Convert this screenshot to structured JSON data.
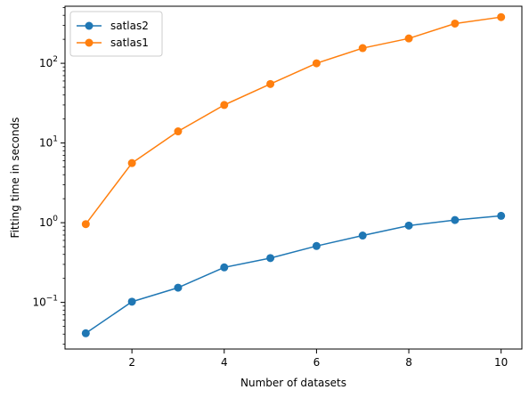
{
  "chart_data": {
    "type": "line",
    "title": "",
    "xlabel": "Number of datasets",
    "ylabel": "Fitting time in seconds",
    "yscale": "log",
    "xlim": [
      0.55,
      10.45
    ],
    "ylim": [
      0.026,
      520
    ],
    "x": [
      1,
      2,
      3,
      4,
      5,
      6,
      7,
      8,
      9,
      10
    ],
    "x_ticks": [
      2,
      4,
      6,
      8,
      10
    ],
    "x_tick_labels": [
      "2",
      "4",
      "6",
      "8",
      "10"
    ],
    "y_ticks": [
      {
        "value": 0.1,
        "base": "10",
        "exp": "−1"
      },
      {
        "value": 1,
        "base": "10",
        "exp": "0"
      },
      {
        "value": 10,
        "base": "10",
        "exp": "1"
      },
      {
        "value": 100,
        "base": "10",
        "exp": "2"
      }
    ],
    "legend_position": "top-left",
    "series": [
      {
        "name": "satlas2",
        "color": "#1f77b4",
        "values": [
          0.041,
          0.102,
          0.153,
          0.275,
          0.36,
          0.51,
          0.69,
          0.92,
          1.08,
          1.22
        ]
      },
      {
        "name": "satlas1",
        "color": "#ff7f0e",
        "values": [
          0.96,
          5.6,
          14.0,
          30.0,
          55.0,
          100.0,
          155.0,
          205.0,
          315.0,
          380.0
        ]
      }
    ]
  }
}
